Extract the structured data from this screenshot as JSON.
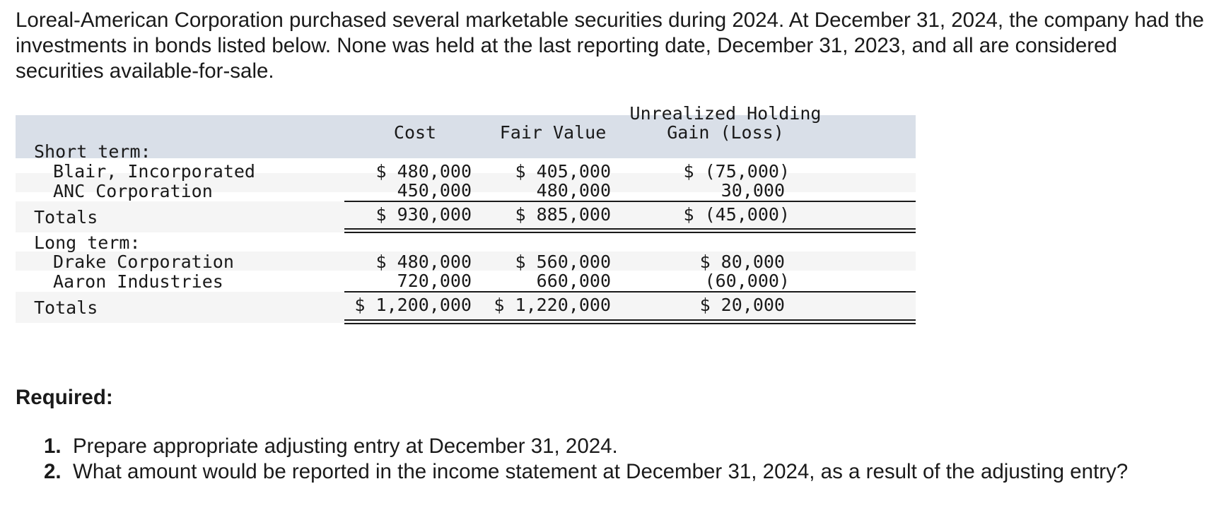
{
  "intro": "Loreal-American Corporation purchased several marketable securities during 2024. At December 31, 2024, the company had the investments in bonds listed below. None was held at the last reporting date, December 31, 2023, and all are considered securities available-for-sale.",
  "table": {
    "headers": {
      "cost": "Cost",
      "fair_value": "Fair Value",
      "gain_line1": "Unrealized Holding",
      "gain_line2": "Gain (Loss)"
    },
    "short_term": {
      "label": "Short term:",
      "rows": [
        {
          "name": "Blair, Incorporated",
          "cost": "$ 480,000",
          "fair_value": "$ 405,000",
          "gain": "$ (75,000)"
        },
        {
          "name": "ANC Corporation",
          "cost": "450,000",
          "fair_value": "480,000",
          "gain": "30,000"
        }
      ],
      "totals": {
        "label": "Totals",
        "cost": "$ 930,000",
        "fair_value": "$ 885,000",
        "gain": "$ (45,000)"
      }
    },
    "long_term": {
      "label": "Long term:",
      "rows": [
        {
          "name": "Drake Corporation",
          "cost": "$ 480,000",
          "fair_value": "$ 560,000",
          "gain": "$ 80,000"
        },
        {
          "name": "Aaron Industries",
          "cost": "720,000",
          "fair_value": "660,000",
          "gain": "(60,000)"
        }
      ],
      "totals": {
        "label": "Totals",
        "cost": "$ 1,200,000",
        "fair_value": "$ 1,220,000",
        "gain": "$ 20,000"
      }
    }
  },
  "required": {
    "title": "Required:",
    "items": [
      {
        "num": "1.",
        "text": "Prepare appropriate adjusting entry at December 31, 2024."
      },
      {
        "num": "2.",
        "text": "What amount would be reported in the income statement at December 31, 2024, as a result of the adjusting entry?"
      }
    ]
  }
}
